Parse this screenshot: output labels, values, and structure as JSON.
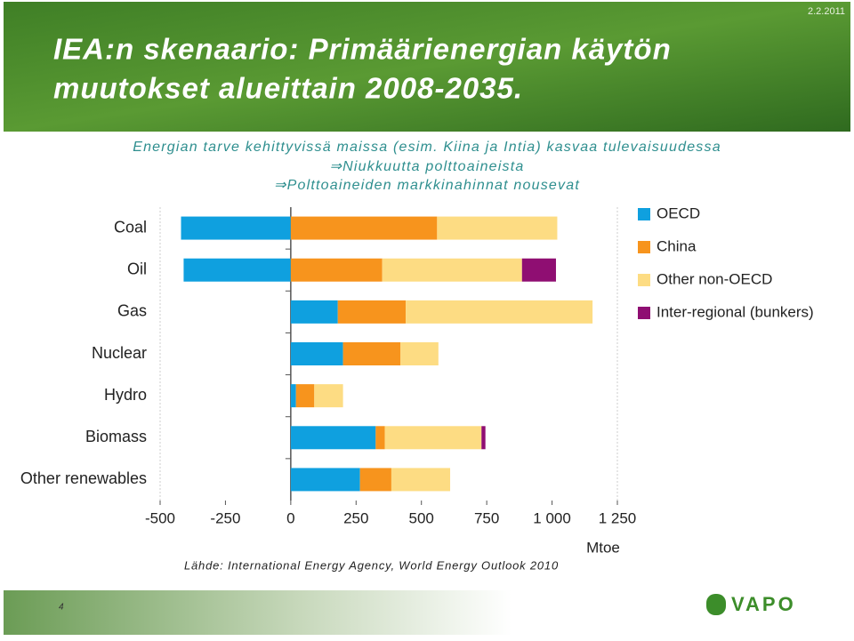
{
  "slide": {
    "date": "2.2.2011",
    "title_lines": [
      "IEA:n skenaario: Primäärienergian käytön",
      "muutokset alueittain 2008-2035."
    ],
    "subtitle_lines": [
      "Energian tarve kehittyvissä maissa (esim. Kiina ja Intia) kasvaa tulevaisuudessa",
      "⇒Niukkuutta polttoaineista",
      "⇒Polttoaineiden markkinahinnat nousevat"
    ],
    "source": "Lähde: International Energy Agency, World Energy Outlook 2010",
    "page_number": "4",
    "logo": "VAPO"
  },
  "chart_data": {
    "type": "stacked-barh",
    "categories": [
      "Coal",
      "Oil",
      "Gas",
      "Nuclear",
      "Hydro",
      "Biomass",
      "Other renewables"
    ],
    "series": [
      {
        "name": "OECD",
        "color": "#0fa0df",
        "values": [
          -420,
          -410,
          180,
          200,
          20,
          325,
          265
        ]
      },
      {
        "name": "China",
        "color": "#f7941d",
        "values": [
          560,
          350,
          260,
          220,
          70,
          35,
          120
        ]
      },
      {
        "name": "Other non-OECD",
        "color": "#fddc83",
        "values": [
          460,
          535,
          715,
          145,
          110,
          370,
          225
        ]
      },
      {
        "name": "Inter-regional (bunkers)",
        "color": "#8f0e72",
        "values": [
          null,
          130,
          null,
          null,
          null,
          15,
          null
        ]
      }
    ],
    "xlim": [
      -500,
      1250
    ],
    "xticks": [
      -500,
      -250,
      0,
      250,
      500,
      750,
      {
        "value": 1000,
        "label": "1 000"
      },
      {
        "value": 1250,
        "label": "1 250"
      }
    ],
    "xlabel": "Mtoe",
    "legend": "right"
  }
}
